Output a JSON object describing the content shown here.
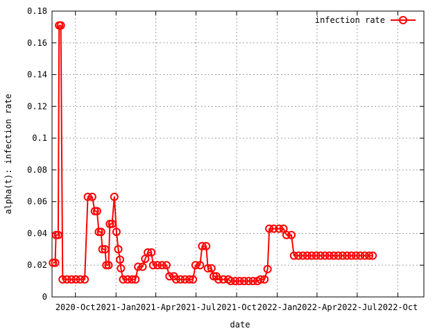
{
  "chart_data": {
    "type": "line",
    "xlabel": "date",
    "ylabel": "alpha(t): infection rate",
    "ylim": [
      0,
      0.18
    ],
    "xlim": [
      "2020-08-09",
      "2022-11-29"
    ],
    "x_ticks": [
      "2020-10-01",
      "2021-01-01",
      "2021-04-01",
      "2021-07-01",
      "2021-10-01",
      "2022-01-01",
      "2022-04-01",
      "2022-07-01",
      "2022-10-01"
    ],
    "x_tick_labels": [
      "2020-Oct",
      "2021-Jan",
      "2021-Apr",
      "2021-Jul",
      "2021-Oct",
      "2022-Jan",
      "2022-Apr",
      "2022-Jul",
      "2022-Oct"
    ],
    "y_ticks": [
      0,
      0.02,
      0.04,
      0.06,
      0.08,
      0.1,
      0.12,
      0.14,
      0.16,
      0.18
    ],
    "y_tick_labels": [
      "0",
      "0.02",
      "0.04",
      "0.06",
      "0.08",
      "0.1",
      "0.12",
      "0.14",
      "0.16",
      "0.18"
    ],
    "grid": true,
    "legend_position": "top-right",
    "series": [
      {
        "name": "infection rate",
        "color": "#ff0000",
        "marker": "circle-open",
        "points": [
          [
            "2020-08-11",
            0.0215
          ],
          [
            "2020-08-16",
            0.0215
          ],
          [
            "2020-08-18",
            0.039
          ],
          [
            "2020-08-23",
            0.039
          ],
          [
            "2020-08-25",
            0.171
          ],
          [
            "2020-08-29",
            0.171
          ],
          [
            "2020-09-02",
            0.011
          ],
          [
            "2020-09-12",
            0.011
          ],
          [
            "2020-09-22",
            0.011
          ],
          [
            "2020-10-02",
            0.011
          ],
          [
            "2020-10-12",
            0.011
          ],
          [
            "2020-10-22",
            0.011
          ],
          [
            "2020-10-29",
            0.063
          ],
          [
            "2020-11-08",
            0.063
          ],
          [
            "2020-11-14",
            0.054
          ],
          [
            "2020-11-19",
            0.054
          ],
          [
            "2020-11-23",
            0.041
          ],
          [
            "2020-11-28",
            0.041
          ],
          [
            "2020-12-01",
            0.03
          ],
          [
            "2020-12-07",
            0.03
          ],
          [
            "2020-12-10",
            0.02
          ],
          [
            "2020-12-15",
            0.02
          ],
          [
            "2020-12-18",
            0.046
          ],
          [
            "2020-12-23",
            0.046
          ],
          [
            "2020-12-28",
            0.063
          ],
          [
            "2021-01-02",
            0.041
          ],
          [
            "2021-01-06",
            0.03
          ],
          [
            "2021-01-10",
            0.0235
          ],
          [
            "2021-01-12",
            0.018
          ],
          [
            "2021-01-17",
            0.011
          ],
          [
            "2021-01-27",
            0.011
          ],
          [
            "2021-02-06",
            0.011
          ],
          [
            "2021-02-14",
            0.011
          ],
          [
            "2021-02-20",
            0.019
          ],
          [
            "2021-03-02",
            0.019
          ],
          [
            "2021-03-08",
            0.024
          ],
          [
            "2021-03-14",
            0.028
          ],
          [
            "2021-03-22",
            0.028
          ],
          [
            "2021-03-26",
            0.02
          ],
          [
            "2021-04-05",
            0.02
          ],
          [
            "2021-04-15",
            0.02
          ],
          [
            "2021-04-25",
            0.02
          ],
          [
            "2021-05-02",
            0.013
          ],
          [
            "2021-05-12",
            0.013
          ],
          [
            "2021-05-17",
            0.011
          ],
          [
            "2021-05-27",
            0.011
          ],
          [
            "2021-06-06",
            0.011
          ],
          [
            "2021-06-16",
            0.011
          ],
          [
            "2021-06-24",
            0.011
          ],
          [
            "2021-06-30",
            0.02
          ],
          [
            "2021-07-10",
            0.02
          ],
          [
            "2021-07-15",
            0.032
          ],
          [
            "2021-07-24",
            0.032
          ],
          [
            "2021-07-28",
            0.018
          ],
          [
            "2021-08-05",
            0.018
          ],
          [
            "2021-08-10",
            0.013
          ],
          [
            "2021-08-16",
            0.013
          ],
          [
            "2021-08-21",
            0.011
          ],
          [
            "2021-09-01",
            0.011
          ],
          [
            "2021-09-12",
            0.011
          ],
          [
            "2021-09-18",
            0.01
          ],
          [
            "2021-09-28",
            0.01
          ],
          [
            "2021-10-08",
            0.01
          ],
          [
            "2021-10-18",
            0.01
          ],
          [
            "2021-10-28",
            0.01
          ],
          [
            "2021-11-07",
            0.01
          ],
          [
            "2021-11-17",
            0.01
          ],
          [
            "2021-11-24",
            0.011
          ],
          [
            "2021-12-03",
            0.011
          ],
          [
            "2021-12-10",
            0.0175
          ],
          [
            "2021-12-14",
            0.043
          ],
          [
            "2021-12-24",
            0.043
          ],
          [
            "2022-01-05",
            0.043
          ],
          [
            "2022-01-15",
            0.043
          ],
          [
            "2022-01-22",
            0.039
          ],
          [
            "2022-02-02",
            0.039
          ],
          [
            "2022-02-08",
            0.026
          ],
          [
            "2022-02-18",
            0.026
          ],
          [
            "2022-02-28",
            0.026
          ],
          [
            "2022-03-10",
            0.026
          ],
          [
            "2022-03-20",
            0.026
          ],
          [
            "2022-03-30",
            0.026
          ],
          [
            "2022-04-09",
            0.026
          ],
          [
            "2022-04-19",
            0.026
          ],
          [
            "2022-04-29",
            0.026
          ],
          [
            "2022-05-09",
            0.026
          ],
          [
            "2022-05-19",
            0.026
          ],
          [
            "2022-05-29",
            0.026
          ],
          [
            "2022-06-08",
            0.026
          ],
          [
            "2022-06-18",
            0.026
          ],
          [
            "2022-06-28",
            0.026
          ],
          [
            "2022-07-08",
            0.026
          ],
          [
            "2022-07-18",
            0.026
          ],
          [
            "2022-07-28",
            0.026
          ],
          [
            "2022-08-05",
            0.026
          ]
        ]
      }
    ]
  }
}
